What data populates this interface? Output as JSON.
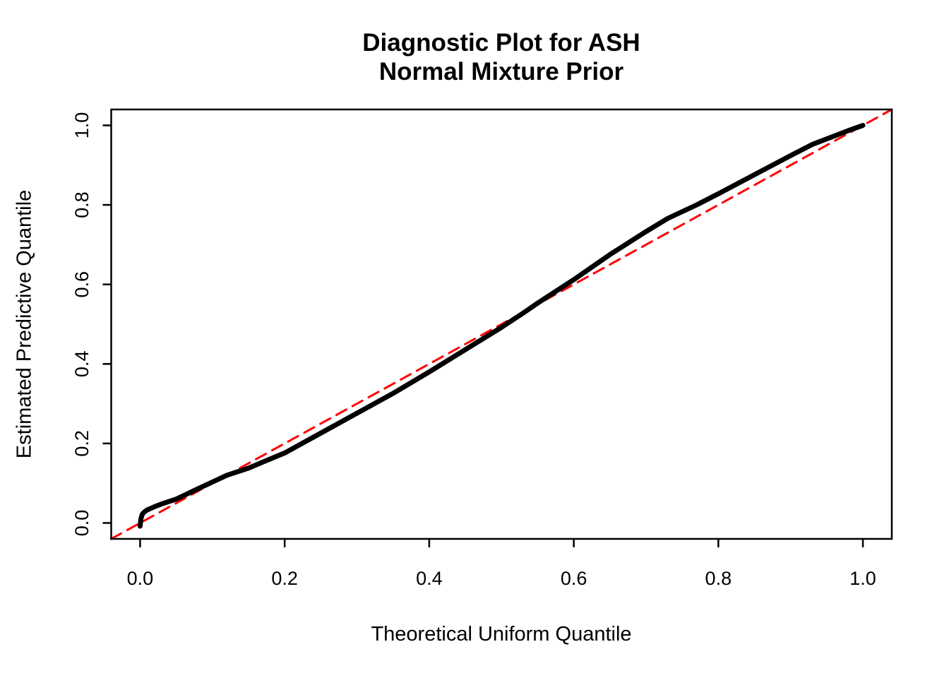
{
  "figure": {
    "background": "#FFFFFF",
    "foreground": "#000000"
  },
  "chart_data": {
    "type": "line",
    "subtype": "qq-diagnostic-plot",
    "title": "Diagnostic Plot for ASH\nNormal Mixture Prior",
    "title_lines": [
      "Diagnostic Plot for ASH",
      "Normal Mixture Prior"
    ],
    "xlabel": "Theoretical Uniform Quantile",
    "ylabel": "Estimated Predictive Quantile",
    "xlim": [
      -0.04,
      1.04
    ],
    "ylim": [
      -0.04,
      1.04
    ],
    "grid": false,
    "legend": "none",
    "x_ticks": {
      "values": [
        0.0,
        0.2,
        0.4,
        0.6,
        0.8,
        1.0
      ],
      "labels": [
        "0.0",
        "0.2",
        "0.4",
        "0.6",
        "0.8",
        "1.0"
      ]
    },
    "y_ticks": {
      "values": [
        0.0,
        0.2,
        0.4,
        0.6,
        0.8,
        1.0
      ],
      "labels": [
        "0.0",
        "0.2",
        "0.4",
        "0.6",
        "0.8",
        "1.0"
      ]
    },
    "series": [
      {
        "name": "identity-reference-line",
        "type": "line",
        "color": "#FF0000",
        "stroke_width": 3,
        "dash": [
          16,
          10
        ],
        "x": [
          -0.04,
          1.04
        ],
        "y": [
          -0.04,
          1.04
        ]
      },
      {
        "name": "estimated-predictive-quantiles",
        "type": "line",
        "color": "#000000",
        "stroke_width": 7,
        "dash": null,
        "x": [
          0.0,
          0.001,
          0.003,
          0.006,
          0.01,
          0.02,
          0.03,
          0.05,
          0.08,
          0.1,
          0.12,
          0.15,
          0.18,
          0.2,
          0.25,
          0.3,
          0.35,
          0.4,
          0.45,
          0.5,
          0.53,
          0.55,
          0.6,
          0.65,
          0.7,
          0.73,
          0.77,
          0.8,
          0.85,
          0.9,
          0.93,
          0.96,
          0.98,
          1.0
        ],
        "y": [
          -0.008,
          0.01,
          0.022,
          0.028,
          0.033,
          0.041,
          0.048,
          0.06,
          0.086,
          0.103,
          0.12,
          0.138,
          0.161,
          0.176,
          0.226,
          0.276,
          0.326,
          0.38,
          0.436,
          0.492,
          0.528,
          0.553,
          0.612,
          0.675,
          0.733,
          0.766,
          0.8,
          0.828,
          0.876,
          0.924,
          0.952,
          0.973,
          0.987,
          1.0
        ]
      }
    ]
  }
}
